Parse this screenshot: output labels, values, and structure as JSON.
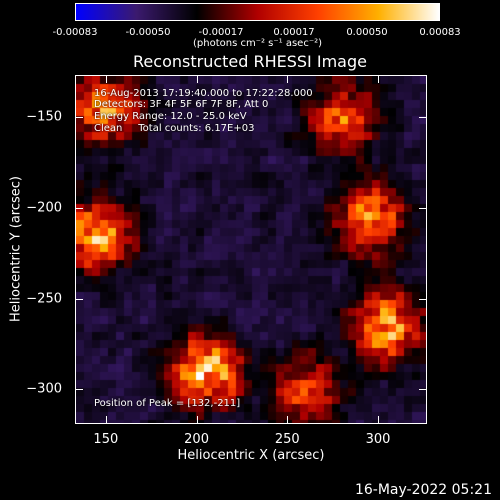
{
  "chart_data": {
    "type": "heatmap",
    "title": "Reconstructed RHESSI Image",
    "xlabel": "Heliocentric X (arcsec)",
    "ylabel": "Heliocentric Y (arcsec)",
    "xlim": [
      133,
      327
    ],
    "ylim": [
      -319,
      -127
    ],
    "xticks": [
      "150",
      "200",
      "250",
      "300"
    ],
    "yticks": [
      "-150",
      "-200",
      "-250",
      "-300"
    ],
    "colorbar": {
      "ticks": [
        "-0.00083",
        "-0.00050",
        "-0.00017",
        "0.00017",
        "0.00050",
        "0.00083"
      ],
      "unit": "(photons cm⁻² s⁻¹ asec⁻²)",
      "colors": [
        "#0000ff",
        "#3b1a6e",
        "#000000",
        "#b00000",
        "#ff4000",
        "#ffb000",
        "#ffffff"
      ]
    },
    "annotations": {
      "time": "16-Aug-2013 17:19:40.000 to 17:22:28.000",
      "detectors": "Detectors: 3F 4F 5F 6F 7F 8F, Att 0",
      "energy": "Energy Range: 12.0 - 25.0 keV",
      "clean": "Clean     Total counts: 6.17E+03",
      "peak": "Position of Peak = [132,-211]"
    },
    "bright_regions": [
      {
        "x": 150,
        "y": -145,
        "level": 0.8
      },
      {
        "x": 145,
        "y": -215,
        "level": 0.9
      },
      {
        "x": 205,
        "y": -290,
        "level": 1.0
      },
      {
        "x": 295,
        "y": -205,
        "level": 0.85
      },
      {
        "x": 305,
        "y": -265,
        "level": 0.9
      },
      {
        "x": 280,
        "y": -150,
        "level": 0.7
      },
      {
        "x": 260,
        "y": -300,
        "level": 0.6
      }
    ]
  },
  "footer": "16-May-2022 05:21"
}
